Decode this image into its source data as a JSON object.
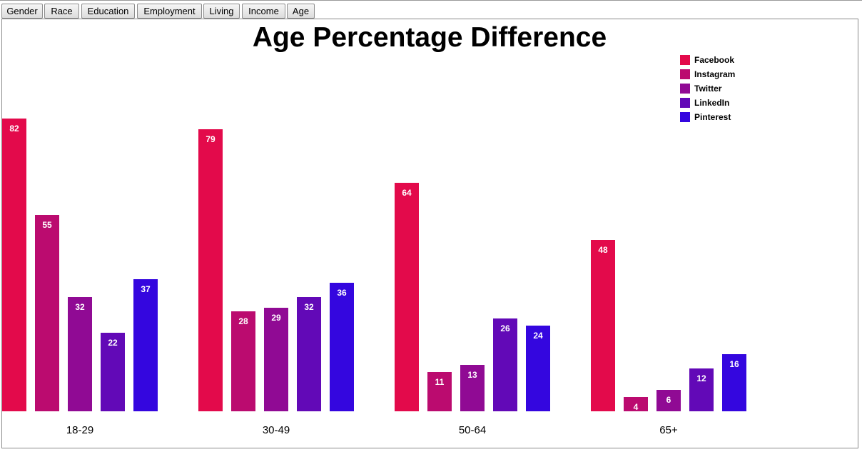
{
  "tabs": [
    {
      "label": "Gender"
    },
    {
      "label": "Race"
    },
    {
      "label": "Education"
    },
    {
      "label": "Employment"
    },
    {
      "label": "Living"
    },
    {
      "label": "Income"
    },
    {
      "label": "Age"
    }
  ],
  "chart_data": {
    "type": "bar",
    "title": "Age Percentage Difference",
    "categories": [
      "18-29",
      "30-49",
      "50-64",
      "65+"
    ],
    "series": [
      {
        "name": "Facebook",
        "color": "#e30a4b",
        "values": [
          82,
          79,
          64,
          48
        ]
      },
      {
        "name": "Instagram",
        "color": "#bb0b6f",
        "values": [
          55,
          28,
          11,
          4
        ]
      },
      {
        "name": "Twitter",
        "color": "#900a94",
        "values": [
          32,
          29,
          13,
          6
        ]
      },
      {
        "name": "LinkedIn",
        "color": "#6209b7",
        "values": [
          22,
          32,
          26,
          12
        ]
      },
      {
        "name": "Pinterest",
        "color": "#3406df",
        "values": [
          37,
          36,
          24,
          16
        ]
      }
    ],
    "ylim": [
      0,
      100
    ],
    "grid": false,
    "legend_position": "top-right",
    "data_labels": "inside-top"
  }
}
